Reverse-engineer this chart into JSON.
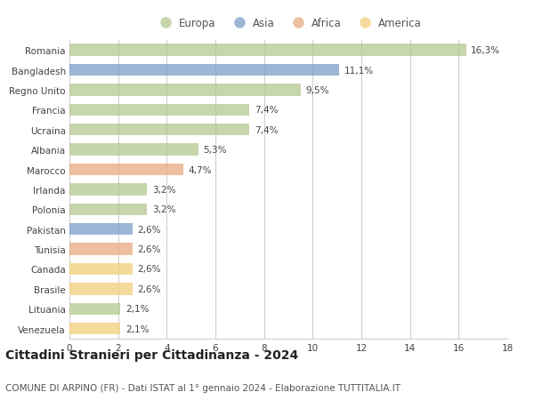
{
  "categories": [
    "Romania",
    "Bangladesh",
    "Regno Unito",
    "Francia",
    "Ucraina",
    "Albania",
    "Marocco",
    "Irlanda",
    "Polonia",
    "Pakistan",
    "Tunisia",
    "Canada",
    "Brasile",
    "Lituania",
    "Venezuela"
  ],
  "values": [
    16.3,
    11.1,
    9.5,
    7.4,
    7.4,
    5.3,
    4.7,
    3.2,
    3.2,
    2.6,
    2.6,
    2.6,
    2.6,
    2.1,
    2.1
  ],
  "labels": [
    "16,3%",
    "11,1%",
    "9,5%",
    "7,4%",
    "7,4%",
    "5,3%",
    "4,7%",
    "3,2%",
    "3,2%",
    "2,6%",
    "2,6%",
    "2,6%",
    "2,6%",
    "2,1%",
    "2,1%"
  ],
  "continents": [
    "Europa",
    "Asia",
    "Europa",
    "Europa",
    "Europa",
    "Europa",
    "Africa",
    "Europa",
    "Europa",
    "Asia",
    "Africa",
    "America",
    "America",
    "Europa",
    "America"
  ],
  "colors": {
    "Europa": "#b5c98e",
    "Asia": "#7b9fc7",
    "Africa": "#e8aa80",
    "America": "#f2d07a"
  },
  "bar_alpha": 0.75,
  "title": "Cittadini Stranieri per Cittadinanza - 2024",
  "subtitle": "COMUNE DI ARPINO (FR) - Dati ISTAT al 1° gennaio 2024 - Elaborazione TUTTITALIA.IT",
  "xlim": [
    0,
    18
  ],
  "xticks": [
    0,
    2,
    4,
    6,
    8,
    10,
    12,
    14,
    16,
    18
  ],
  "background_color": "#ffffff",
  "grid_color": "#d0d0d0",
  "title_fontsize": 10,
  "subtitle_fontsize": 7.5,
  "label_fontsize": 7.5,
  "tick_fontsize": 7.5,
  "legend_fontsize": 8.5
}
